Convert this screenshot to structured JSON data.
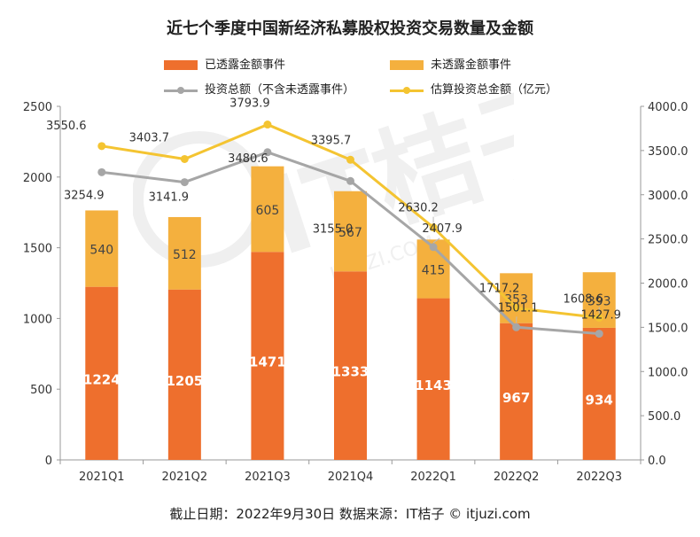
{
  "chart_data": {
    "type": "bar",
    "title": "近七个季度中国新经济私募股权投资交易数量及金额",
    "categories": [
      "2021Q1",
      "2021Q2",
      "2021Q3",
      "2021Q4",
      "2022Q1",
      "2022Q2",
      "2022Q3"
    ],
    "series": [
      {
        "name": "已透露金额事件",
        "type": "bar",
        "axis": "left",
        "color": "#EE6F2D",
        "values": [
          1224,
          1205,
          1471,
          1333,
          1143,
          967,
          934
        ]
      },
      {
        "name": "未透露金额事件",
        "type": "bar",
        "axis": "left",
        "color": "#F4B03E",
        "values": [
          540,
          512,
          605,
          567,
          415,
          353,
          393
        ]
      },
      {
        "name": "投资总额（不含未透露事件）",
        "type": "line",
        "axis": "right",
        "color": "#A6A6A6",
        "values": [
          3254.9,
          3141.9,
          3480.6,
          3155.0,
          2407.9,
          1501.1,
          1427.9
        ],
        "labels": [
          "3254.9",
          "3141.9",
          "3480.6",
          "3155.0",
          "2407.9",
          "1501.1",
          "1427.9"
        ]
      },
      {
        "name": "估算投资总金额（亿元）",
        "type": "line",
        "axis": "right",
        "color": "#F4C431",
        "values": [
          3550.6,
          3403.7,
          3793.9,
          3395.7,
          2630.2,
          1717.2,
          1608.6
        ],
        "labels": [
          "3550.6",
          "3403.7",
          "3793.9",
          "3395.7",
          "2630.2",
          "1717.2",
          "1608.6"
        ]
      }
    ],
    "ylim": [
      0,
      2500
    ],
    "yticks": [
      "0",
      "500",
      "1000",
      "1500",
      "2000",
      "2500"
    ],
    "y2lim": [
      0,
      4000
    ],
    "y2ticks": [
      "0.0",
      "500.0",
      "1000.0",
      "1500.0",
      "2000.0",
      "2500.0",
      "3000.0",
      "3500.0",
      "4000.0"
    ],
    "xlabel": "",
    "ylabel": "",
    "legend_position": "top",
    "grid": false
  },
  "footer": "截止日期：2022年9月30日     数据来源：IT桔子 © itjuzi.com",
  "watermark": {
    "text": "IT桔子",
    "url": "ITJUZI.COM"
  }
}
